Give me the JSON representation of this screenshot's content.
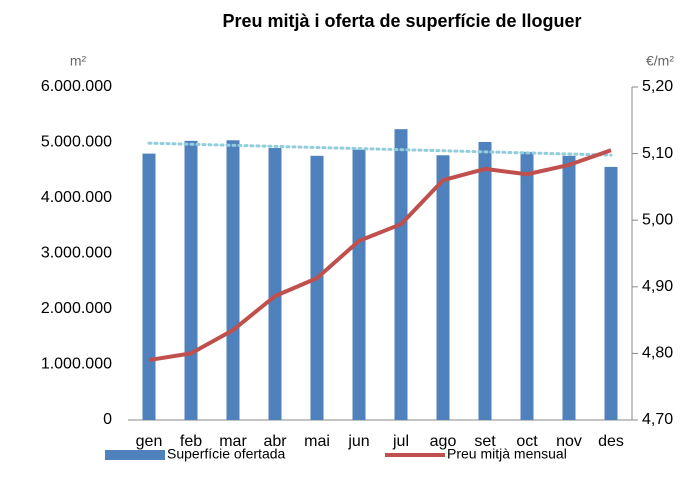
{
  "chart_data": {
    "type": "bar",
    "title": "Preu mitjà i oferta de superfície de lloguer",
    "y_label": "m²",
    "y2_label": "€/m²",
    "categories": [
      "gen",
      "feb",
      "mar",
      "abr",
      "mai",
      "jun",
      "jul",
      "ago",
      "set",
      "oct",
      "nov",
      "des"
    ],
    "series": [
      {
        "name": "Superfície ofertada",
        "type": "bar",
        "color": "#4f81bd",
        "values": [
          4800000,
          5030000,
          5040000,
          4900000,
          4760000,
          4870000,
          5240000,
          4770000,
          5010000,
          4830000,
          4760000,
          4560000
        ],
        "trendline": true,
        "trendline_color": "#92cddc"
      },
      {
        "name": "Preu mitjà mensual",
        "type": "line",
        "axis": "y2",
        "color": "#c0504d",
        "values": [
          4.79,
          4.8,
          4.835,
          4.886,
          4.913,
          4.969,
          4.994,
          5.06,
          5.077,
          5.069,
          5.083,
          5.105
        ]
      }
    ],
    "ylim": [
      0,
      6000000
    ],
    "yticks": [
      0,
      {
        "value": 1000000,
        "label": "1.000.000"
      },
      {
        "value": 2000000,
        "label": "2.000.000"
      },
      {
        "value": 3000000,
        "label": "3.000.000"
      },
      {
        "value": 4000000,
        "label": "4.000.000"
      },
      {
        "value": 5000000,
        "label": "5.000.000"
      },
      {
        "value": 6000000,
        "label": "6.000.000"
      }
    ],
    "y2lim": [
      4.7,
      5.2
    ],
    "y2ticks": [
      {
        "value": 4.7,
        "label": "4,70"
      },
      {
        "value": 4.8,
        "label": "4,80"
      },
      {
        "value": 4.9,
        "label": "4,90"
      },
      {
        "value": 5.0,
        "label": "5,00"
      },
      {
        "value": 5.1,
        "label": "5,10"
      },
      {
        "value": 5.2,
        "label": "5,20"
      }
    ],
    "grid": false,
    "legend": "bottom"
  }
}
